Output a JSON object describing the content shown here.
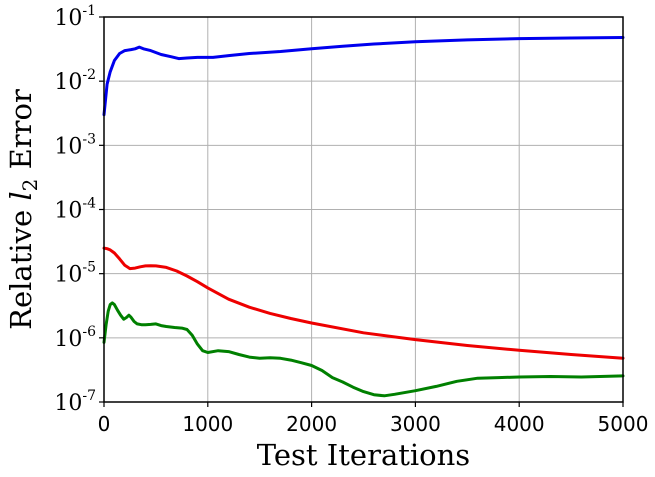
{
  "chart_data": {
    "type": "line",
    "xlabel": "Test Iterations",
    "ylabel": {
      "prefix": "Relative ",
      "var": "l",
      "sub": "2",
      "suffix": " Error"
    },
    "xlim": [
      0,
      5000
    ],
    "ylim": [
      1e-07,
      0.1
    ],
    "yscale": "log",
    "grid": true,
    "xticks": [
      0,
      1000,
      2000,
      3000,
      4000,
      5000
    ],
    "xtick_labels": [
      "0",
      "1000",
      "2000",
      "3000",
      "4000",
      "5000"
    ],
    "yticks": [
      1e-07,
      1e-06,
      1e-05,
      0.0001,
      0.001,
      0.01,
      0.1
    ],
    "ytick_labels": [
      {
        "base": "10",
        "exp": "-7"
      },
      {
        "base": "10",
        "exp": "-6"
      },
      {
        "base": "10",
        "exp": "-5"
      },
      {
        "base": "10",
        "exp": "-4"
      },
      {
        "base": "10",
        "exp": "-3"
      },
      {
        "base": "10",
        "exp": "-2"
      },
      {
        "base": "10",
        "exp": "-1"
      }
    ],
    "series": [
      {
        "color": "#0000ee",
        "x": [
          0,
          30,
          60,
          100,
          150,
          200,
          260,
          300,
          340,
          380,
          450,
          550,
          650,
          720,
          800,
          900,
          1000,
          1050,
          1200,
          1400,
          1700,
          2000,
          2300,
          2600,
          3000,
          3500,
          4000,
          4500,
          5000
        ],
        "y": [
          0.003,
          0.009,
          0.014,
          0.021,
          0.027,
          0.03,
          0.031,
          0.032,
          0.034,
          0.032,
          0.03,
          0.026,
          0.024,
          0.0225,
          0.023,
          0.0235,
          0.0235,
          0.0235,
          0.025,
          0.027,
          0.029,
          0.032,
          0.035,
          0.038,
          0.041,
          0.044,
          0.046,
          0.047,
          0.048
        ]
      },
      {
        "color": "#ee0000",
        "x": [
          0,
          30,
          60,
          100,
          150,
          200,
          250,
          300,
          350,
          400,
          450,
          500,
          600,
          700,
          800,
          900,
          1000,
          1200,
          1400,
          1600,
          1800,
          2000,
          2500,
          3000,
          3500,
          4000,
          4500,
          5000
        ],
        "y": [
          2.5e-05,
          2.45e-05,
          2.35e-05,
          2.1e-05,
          1.7e-05,
          1.35e-05,
          1.2e-05,
          1.22e-05,
          1.28e-05,
          1.32e-05,
          1.33e-05,
          1.32e-05,
          1.25e-05,
          1.1e-05,
          9.2e-06,
          7.5e-06,
          6e-06,
          4e-06,
          3e-06,
          2.4e-06,
          2e-06,
          1.7e-06,
          1.2e-06,
          9.4e-07,
          7.6e-07,
          6.4e-07,
          5.5e-07,
          4.8e-07
        ]
      },
      {
        "color": "#008000",
        "x": [
          0,
          20,
          40,
          60,
          80,
          100,
          130,
          160,
          190,
          220,
          240,
          260,
          290,
          320,
          360,
          400,
          450,
          500,
          550,
          600,
          680,
          750,
          800,
          850,
          900,
          950,
          1000,
          1100,
          1200,
          1300,
          1400,
          1500,
          1600,
          1700,
          1800,
          1900,
          2000,
          2100,
          2200,
          2300,
          2400,
          2500,
          2600,
          2700,
          2800,
          3000,
          3200,
          3400,
          3600,
          3800,
          4000,
          4300,
          4600,
          5000
        ],
        "y": [
          8.5e-07,
          1.6e-06,
          2.6e-06,
          3.3e-06,
          3.5e-06,
          3.3e-06,
          2.7e-06,
          2.25e-06,
          1.95e-06,
          2.1e-06,
          2.25e-06,
          2.1e-06,
          1.8e-06,
          1.65e-06,
          1.6e-06,
          1.6e-06,
          1.62e-06,
          1.65e-06,
          1.55e-06,
          1.5e-06,
          1.45e-06,
          1.42e-06,
          1.35e-06,
          1.1e-06,
          8e-07,
          6.3e-07,
          5.9e-07,
          6.3e-07,
          6.1e-07,
          5.5e-07,
          5e-07,
          4.8e-07,
          4.9e-07,
          4.8e-07,
          4.5e-07,
          4.1e-07,
          3.7e-07,
          3.1e-07,
          2.4e-07,
          2.05e-07,
          1.7e-07,
          1.45e-07,
          1.3e-07,
          1.25e-07,
          1.32e-07,
          1.5e-07,
          1.75e-07,
          2.1e-07,
          2.35e-07,
          2.4e-07,
          2.45e-07,
          2.5e-07,
          2.45e-07,
          2.55e-07
        ]
      }
    ]
  }
}
